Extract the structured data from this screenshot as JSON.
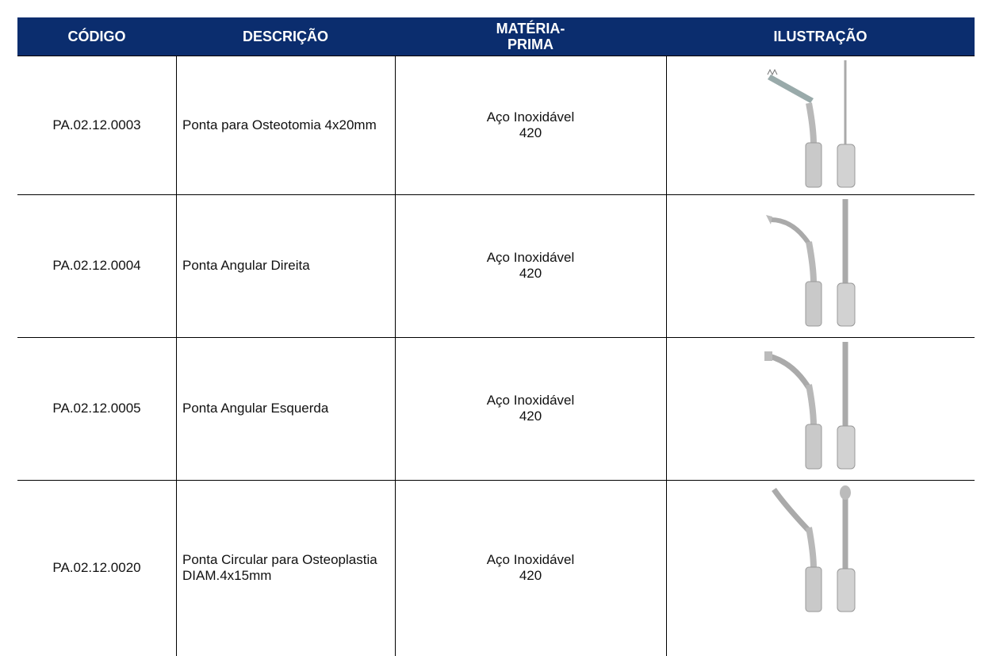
{
  "table": {
    "header": [
      "CÓDIGO",
      "DESCRIÇÃO",
      "MATÉRIA-PRIMA",
      "ILUSTRAÇÃO"
    ],
    "rows": [
      [
        "PA.02.12.0003",
        "Ponta para Osteotomia 4x20mm",
        "Aço Inoxidável 420"
      ],
      [
        "PA.02.12.0004",
        "Ponta Angular Direita",
        "Aço Inoxidável 420"
      ],
      [
        "PA.02.12.0005",
        "Ponta Angular Esquerda",
        "Aço Inoxidável 420"
      ],
      [
        "PA.02.12.0020",
        "Ponta Circular para Osteoplastia DIAM.4x15mm",
        "Aço Inoxidável 420"
      ]
    ]
  }
}
